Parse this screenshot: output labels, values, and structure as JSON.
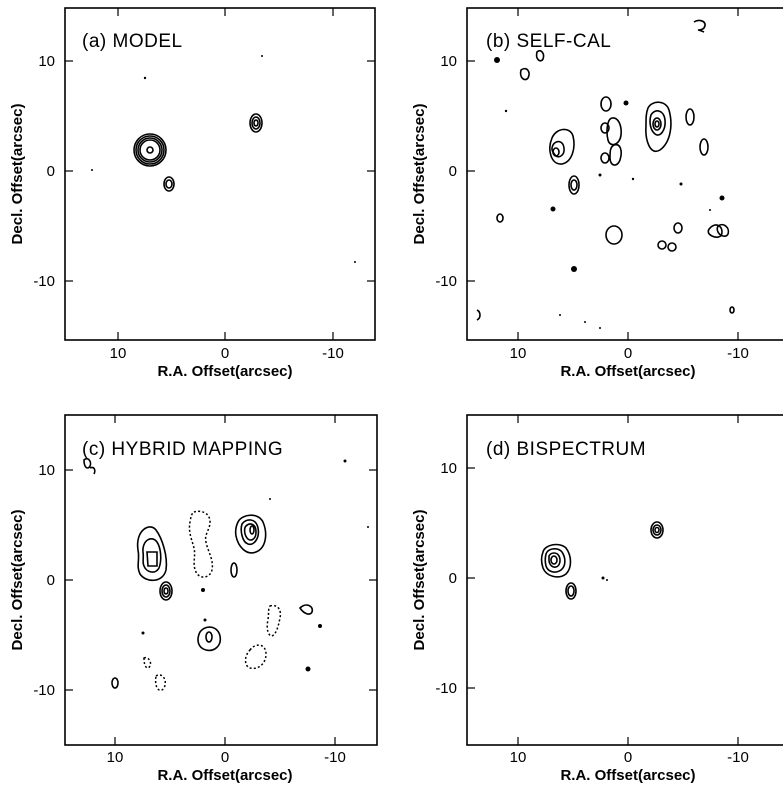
{
  "figure": {
    "x_axis_label": "R.A. Offset(arcsec)",
    "y_axis_label": "Decl. Offset(arcsec)",
    "x_tick_labels": [
      "10",
      "0",
      "-10"
    ],
    "y_tick_labels": [
      "10",
      "0",
      "-10"
    ]
  },
  "panels": [
    {
      "title": "(a) MODEL"
    },
    {
      "title": "(b) SELF-CAL"
    },
    {
      "title": "(c) HYBRID MAPPING"
    },
    {
      "title": "(d) BISPECTRUM"
    }
  ],
  "chart_data": [
    {
      "type": "contour",
      "title": "(a) MODEL",
      "xlabel": "R.A. Offset(arcsec)",
      "ylabel": "Decl. Offset(arcsec)",
      "xlim": [
        15,
        -15
      ],
      "ylim": [
        -15,
        15
      ],
      "xticks": [
        10,
        0,
        -10
      ],
      "yticks": [
        10,
        0,
        -10
      ],
      "sources": [
        {
          "x": 6.5,
          "y": 2
        },
        {
          "x": 5,
          "y": -1
        },
        {
          "x": -3,
          "y": 4.5
        }
      ]
    },
    {
      "type": "contour",
      "title": "(b) SELF-CAL",
      "xlabel": "R.A. Offset(arcsec)",
      "ylabel": "Decl. Offset(arcsec)",
      "xlim": [
        15,
        -15
      ],
      "ylim": [
        -15,
        15
      ],
      "xticks": [
        10,
        0,
        -10
      ],
      "yticks": [
        10,
        0,
        -10
      ],
      "sources": [
        {
          "x": 6.5,
          "y": 2
        },
        {
          "x": 5,
          "y": -1
        },
        {
          "x": -3,
          "y": 4.5
        }
      ]
    },
    {
      "type": "contour",
      "title": "(c) HYBRID MAPPING",
      "xlabel": "R.A. Offset(arcsec)",
      "ylabel": "Decl. Offset(arcsec)",
      "xlim": [
        15,
        -15
      ],
      "ylim": [
        -15,
        15
      ],
      "xticks": [
        10,
        0,
        -10
      ],
      "yticks": [
        10,
        0,
        -10
      ],
      "sources": [
        {
          "x": 6.5,
          "y": 2
        },
        {
          "x": 5,
          "y": -1
        },
        {
          "x": -3,
          "y": 4.5
        }
      ]
    },
    {
      "type": "contour",
      "title": "(d) BISPECTRUM",
      "xlabel": "R.A. Offset(arcsec)",
      "ylabel": "Decl. Offset(arcsec)",
      "xlim": [
        15,
        -15
      ],
      "ylim": [
        -15,
        15
      ],
      "xticks": [
        10,
        0,
        -10
      ],
      "yticks": [
        10,
        0,
        -10
      ],
      "sources": [
        {
          "x": 6.5,
          "y": 2
        },
        {
          "x": 5,
          "y": -1
        },
        {
          "x": -3,
          "y": 4.5
        }
      ]
    }
  ]
}
